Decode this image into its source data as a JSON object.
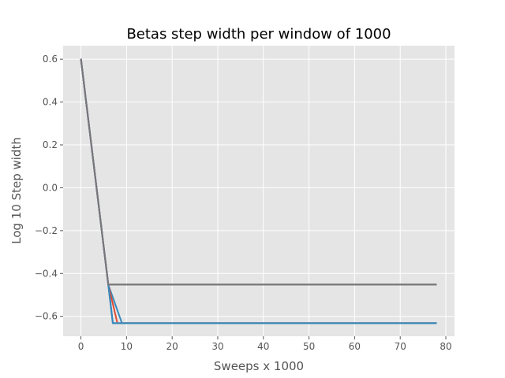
{
  "chart_data": {
    "type": "line",
    "title": "Betas step width per window of 1000",
    "xlabel": "Sweeps x 1000",
    "ylabel": "Log 10 Step width",
    "xlim": [
      -3.9,
      81.9
    ],
    "ylim": [
      -0.693,
      0.663
    ],
    "xticks": [
      0,
      10,
      20,
      30,
      40,
      50,
      60,
      70,
      80
    ],
    "yticks": [
      -0.6,
      -0.4,
      -0.2,
      0.0,
      0.2,
      0.4,
      0.6
    ],
    "xtick_labels": [
      "0",
      "10",
      "20",
      "30",
      "40",
      "50",
      "60",
      "70",
      "80"
    ],
    "ytick_labels": [
      "−0.6",
      "−0.4",
      "−0.2",
      "0.0",
      "0.2",
      "0.4",
      "0.6"
    ],
    "grid": true,
    "background": "#e5e5e5",
    "grid_color": "#ffffff",
    "series": [
      {
        "color": "#348abd",
        "x": [
          0,
          6,
          9,
          78
        ],
        "y": [
          0.602,
          -0.452,
          -0.632,
          -0.632
        ]
      },
      {
        "color": "#e24a33",
        "x": [
          0,
          6,
          8,
          78
        ],
        "y": [
          0.602,
          -0.452,
          -0.632,
          -0.632
        ]
      },
      {
        "color": "#988ed5",
        "x": [
          0,
          6,
          78
        ],
        "y": [
          0.602,
          -0.452,
          -0.452
        ]
      },
      {
        "color": "#fbc15e",
        "x": [
          0,
          6,
          78
        ],
        "y": [
          0.602,
          -0.452,
          -0.452
        ]
      },
      {
        "color": "#8eba42",
        "x": [
          0,
          6,
          78
        ],
        "y": [
          0.602,
          -0.452,
          -0.452
        ]
      },
      {
        "color": "#ffb5b8",
        "x": [
          0,
          6,
          78
        ],
        "y": [
          0.602,
          -0.452,
          -0.452
        ]
      },
      {
        "color": "#777777",
        "x": [
          0,
          6,
          78
        ],
        "y": [
          0.602,
          -0.452,
          -0.452
        ]
      },
      {
        "color": "#988ed5",
        "x": [
          0,
          6,
          7,
          78
        ],
        "y": [
          0.602,
          -0.452,
          -0.632,
          -0.632
        ]
      },
      {
        "color": "#777777",
        "x": [
          0,
          6,
          7,
          78
        ],
        "y": [
          0.602,
          -0.452,
          -0.632,
          -0.632
        ]
      },
      {
        "color": "#348abd",
        "x": [
          0,
          6,
          7,
          78
        ],
        "y": [
          0.602,
          -0.452,
          -0.632,
          -0.632
        ]
      },
      {
        "color": "#988ed5",
        "x": [
          0,
          6,
          78
        ],
        "y": [
          0.602,
          -0.452,
          -0.452
        ]
      },
      {
        "color": "#777777",
        "x": [
          0,
          6,
          78
        ],
        "y": [
          0.602,
          -0.452,
          -0.452
        ]
      }
    ]
  }
}
